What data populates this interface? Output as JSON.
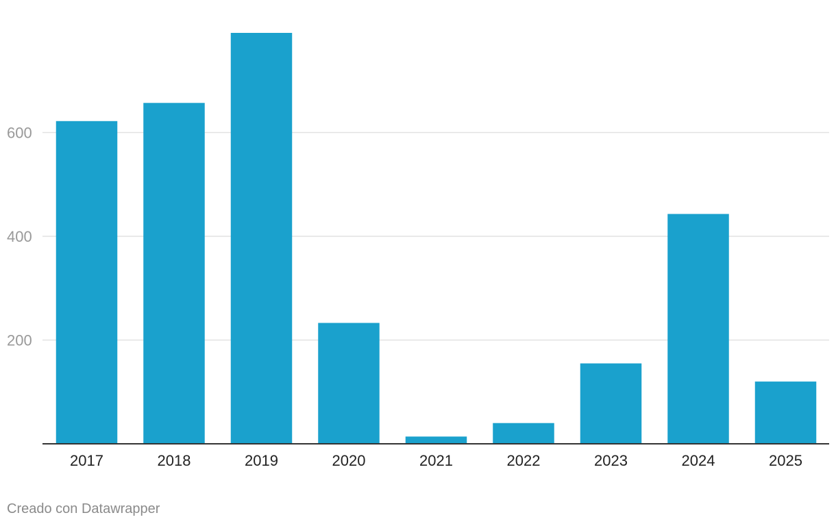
{
  "chart_data": {
    "type": "bar",
    "categories": [
      "2017",
      "2018",
      "2019",
      "2020",
      "2021",
      "2022",
      "2023",
      "2024",
      "2025"
    ],
    "values": [
      622,
      657,
      792,
      233,
      14,
      40,
      155,
      443,
      120
    ],
    "ylim": [
      0,
      792
    ],
    "yticks": [
      200,
      400,
      600
    ],
    "grid": true,
    "bar_color": "#1aa1cd",
    "axis_color": "#333333",
    "tick_label_color": "#999999",
    "category_label_color": "#222222",
    "gridline_color": "#e2e2e2"
  },
  "footer": {
    "credit": "Creado con Datawrapper"
  }
}
